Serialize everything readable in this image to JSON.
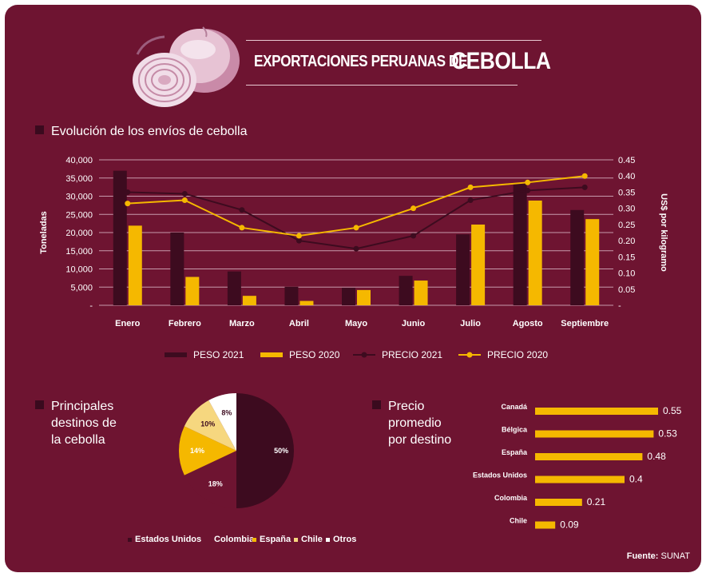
{
  "title": {
    "prefix": "EXPORTACIONES PERUANAS DE",
    "main": "CEBOLLA"
  },
  "colors": {
    "background": "#6e1431",
    "peso2021": "#3d0b1f",
    "peso2020": "#f5b800",
    "precio2021": "#3d0b1f",
    "precio2020": "#f5b800"
  },
  "section1": {
    "heading": "Evolución de los envíos de cebolla"
  },
  "section2": {
    "heading_lines": [
      "Principales",
      "destinos de",
      "la cebolla"
    ]
  },
  "section3": {
    "heading_lines": [
      "Precio",
      "promedio",
      "por destino"
    ]
  },
  "source": {
    "label": "Fuente:",
    "value": "SUNAT"
  },
  "chart_data": [
    {
      "type": "bar",
      "title": "Evolución de los envíos de cebolla",
      "categories": [
        "Enero",
        "Febrero",
        "Marzo",
        "Abril",
        "Mayo",
        "Junio",
        "Julio",
        "Agosto",
        "Septiembre"
      ],
      "ylabel": "Toneladas",
      "y2label": "US$ por kilogramo",
      "ylim": [
        0,
        40000
      ],
      "y2lim": [
        0,
        0.45
      ],
      "yticks": [
        "-",
        "5,000",
        "10,000",
        "15,000",
        "20,000",
        "25,000",
        "30,000",
        "35,000",
        "40,000"
      ],
      "y2ticks": [
        "-",
        "0.05",
        "0.10",
        "0.15",
        "0.20",
        "0.25",
        "0.30",
        "0.35",
        "0.40",
        "0.45"
      ],
      "series": [
        {
          "name": "PESO 2021",
          "kind": "bar",
          "axis": "left",
          "values": [
            37000,
            20000,
            9300,
            5100,
            4800,
            8100,
            19500,
            33500,
            26200
          ]
        },
        {
          "name": "PESO 2020",
          "kind": "bar",
          "axis": "left",
          "values": [
            21900,
            7800,
            2600,
            1200,
            4200,
            6800,
            22200,
            28800,
            23700
          ]
        },
        {
          "name": "PRECIO 2021",
          "kind": "line",
          "axis": "right",
          "values": [
            0.35,
            0.345,
            0.295,
            0.2,
            0.175,
            0.215,
            0.325,
            0.355,
            0.365
          ]
        },
        {
          "name": "PRECIO 2020",
          "kind": "line",
          "axis": "right",
          "values": [
            0.315,
            0.325,
            0.24,
            0.215,
            0.24,
            0.3,
            0.365,
            0.38,
            0.4
          ]
        }
      ],
      "legend": "bottom"
    },
    {
      "type": "pie",
      "title": "Principales destinos de la cebolla",
      "labels": [
        "Estados Unidos",
        "Colombia",
        "España",
        "Chile",
        "Otros"
      ],
      "values": [
        50,
        18,
        14,
        10,
        8
      ],
      "value_labels": [
        "50%",
        "18%",
        "14%",
        "10%",
        "8%"
      ],
      "colors": [
        "#3d0b1f",
        "#6e1431",
        "#f5b800",
        "#f6d77f",
        "#ffffff"
      ],
      "legend": "bottom"
    },
    {
      "type": "bar",
      "orientation": "horizontal",
      "title": "Precio promedio por destino",
      "categories": [
        "Canadá",
        "Bélgica",
        "España",
        "Estados Unidos",
        "Colombia",
        "Chile"
      ],
      "values": [
        0.55,
        0.53,
        0.48,
        0.4,
        0.21,
        0.09
      ],
      "value_labels": [
        "0.55",
        "0.53",
        "0.48",
        "0.4",
        "0.21",
        "0.09"
      ],
      "xlim": [
        0,
        0.55
      ]
    }
  ]
}
